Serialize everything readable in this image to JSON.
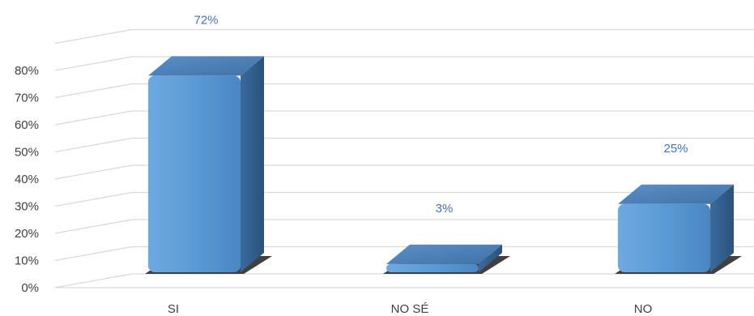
{
  "chart_data": {
    "type": "bar",
    "title": "",
    "xlabel": "",
    "ylabel": "",
    "categories": [
      "SI",
      "NO SÉ",
      "NO"
    ],
    "values": [
      72,
      3,
      25
    ],
    "data_labels": [
      "72%",
      "3%",
      "25%"
    ],
    "y_ticks": [
      "0%",
      "10%",
      "20%",
      "30%",
      "40%",
      "50%",
      "60%",
      "70%",
      "80%"
    ],
    "ylim": [
      0,
      80
    ],
    "grid": true,
    "legend": "none",
    "style": "3d-column",
    "colors": {
      "bar_front": "#5b9bd5",
      "bar_top": "#4a7fb8",
      "bar_side": "#2f5c8a",
      "data_label": "#4472c4",
      "grid": "#d9d9d9",
      "tick_text": "#404040"
    }
  }
}
